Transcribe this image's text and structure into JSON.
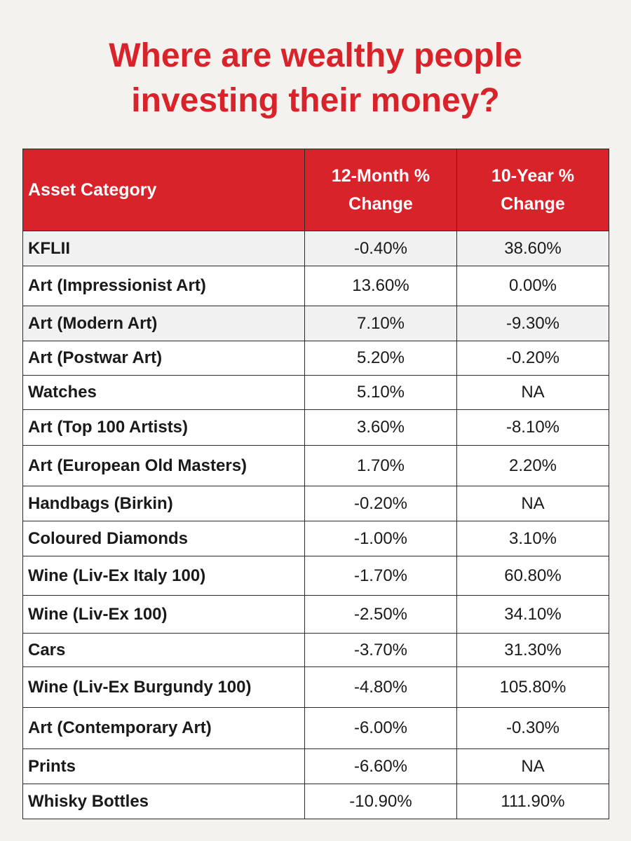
{
  "title": {
    "line1": "Where are wealthy people",
    "line2": "investing their money?"
  },
  "colors": {
    "accent": "#d8232a",
    "background": "#f4f2ee",
    "shaded_row": "#f1f1f1"
  },
  "table": {
    "headers": {
      "category": "Asset Category",
      "twelve_month_line1": "12-Month %",
      "twelve_month_line2": "Change",
      "ten_year_line1": "10-Year %",
      "ten_year_line2": "Change"
    },
    "rows": [
      {
        "category": "KFLII",
        "twelve_month": "-0.40%",
        "ten_year": "38.60%"
      },
      {
        "category": "Art (Impressionist Art)",
        "twelve_month": "13.60%",
        "ten_year": "0.00%"
      },
      {
        "category": "Art (Modern Art)",
        "twelve_month": "7.10%",
        "ten_year": "-9.30%"
      },
      {
        "category": "Art (Postwar Art)",
        "twelve_month": "5.20%",
        "ten_year": "-0.20%"
      },
      {
        "category": "Watches",
        "twelve_month": "5.10%",
        "ten_year": "NA"
      },
      {
        "category": "Art (Top 100 Artists)",
        "twelve_month": "3.60%",
        "ten_year": "-8.10%"
      },
      {
        "category": "Art (European Old Masters)",
        "twelve_month": "1.70%",
        "ten_year": "2.20%"
      },
      {
        "category": "Handbags (Birkin)",
        "twelve_month": "-0.20%",
        "ten_year": "NA"
      },
      {
        "category": "Coloured Diamonds",
        "twelve_month": "-1.00%",
        "ten_year": "3.10%"
      },
      {
        "category": "Wine (Liv-Ex Italy 100)",
        "twelve_month": "-1.70%",
        "ten_year": "60.80%"
      },
      {
        "category": "Wine (Liv-Ex 100)",
        "twelve_month": "-2.50%",
        "ten_year": "34.10%"
      },
      {
        "category": "Cars",
        "twelve_month": "-3.70%",
        "ten_year": "31.30%"
      },
      {
        "category": "Wine (Liv-Ex Burgundy 100)",
        "twelve_month": "-4.80%",
        "ten_year": "105.80%"
      },
      {
        "category": "Art (Contemporary Art)",
        "twelve_month": "-6.00%",
        "ten_year": "-0.30%"
      },
      {
        "category": "Prints",
        "twelve_month": "-6.60%",
        "ten_year": "NA"
      },
      {
        "category": "Whisky Bottles",
        "twelve_month": "-10.90%",
        "ten_year": "111.90%"
      }
    ]
  }
}
